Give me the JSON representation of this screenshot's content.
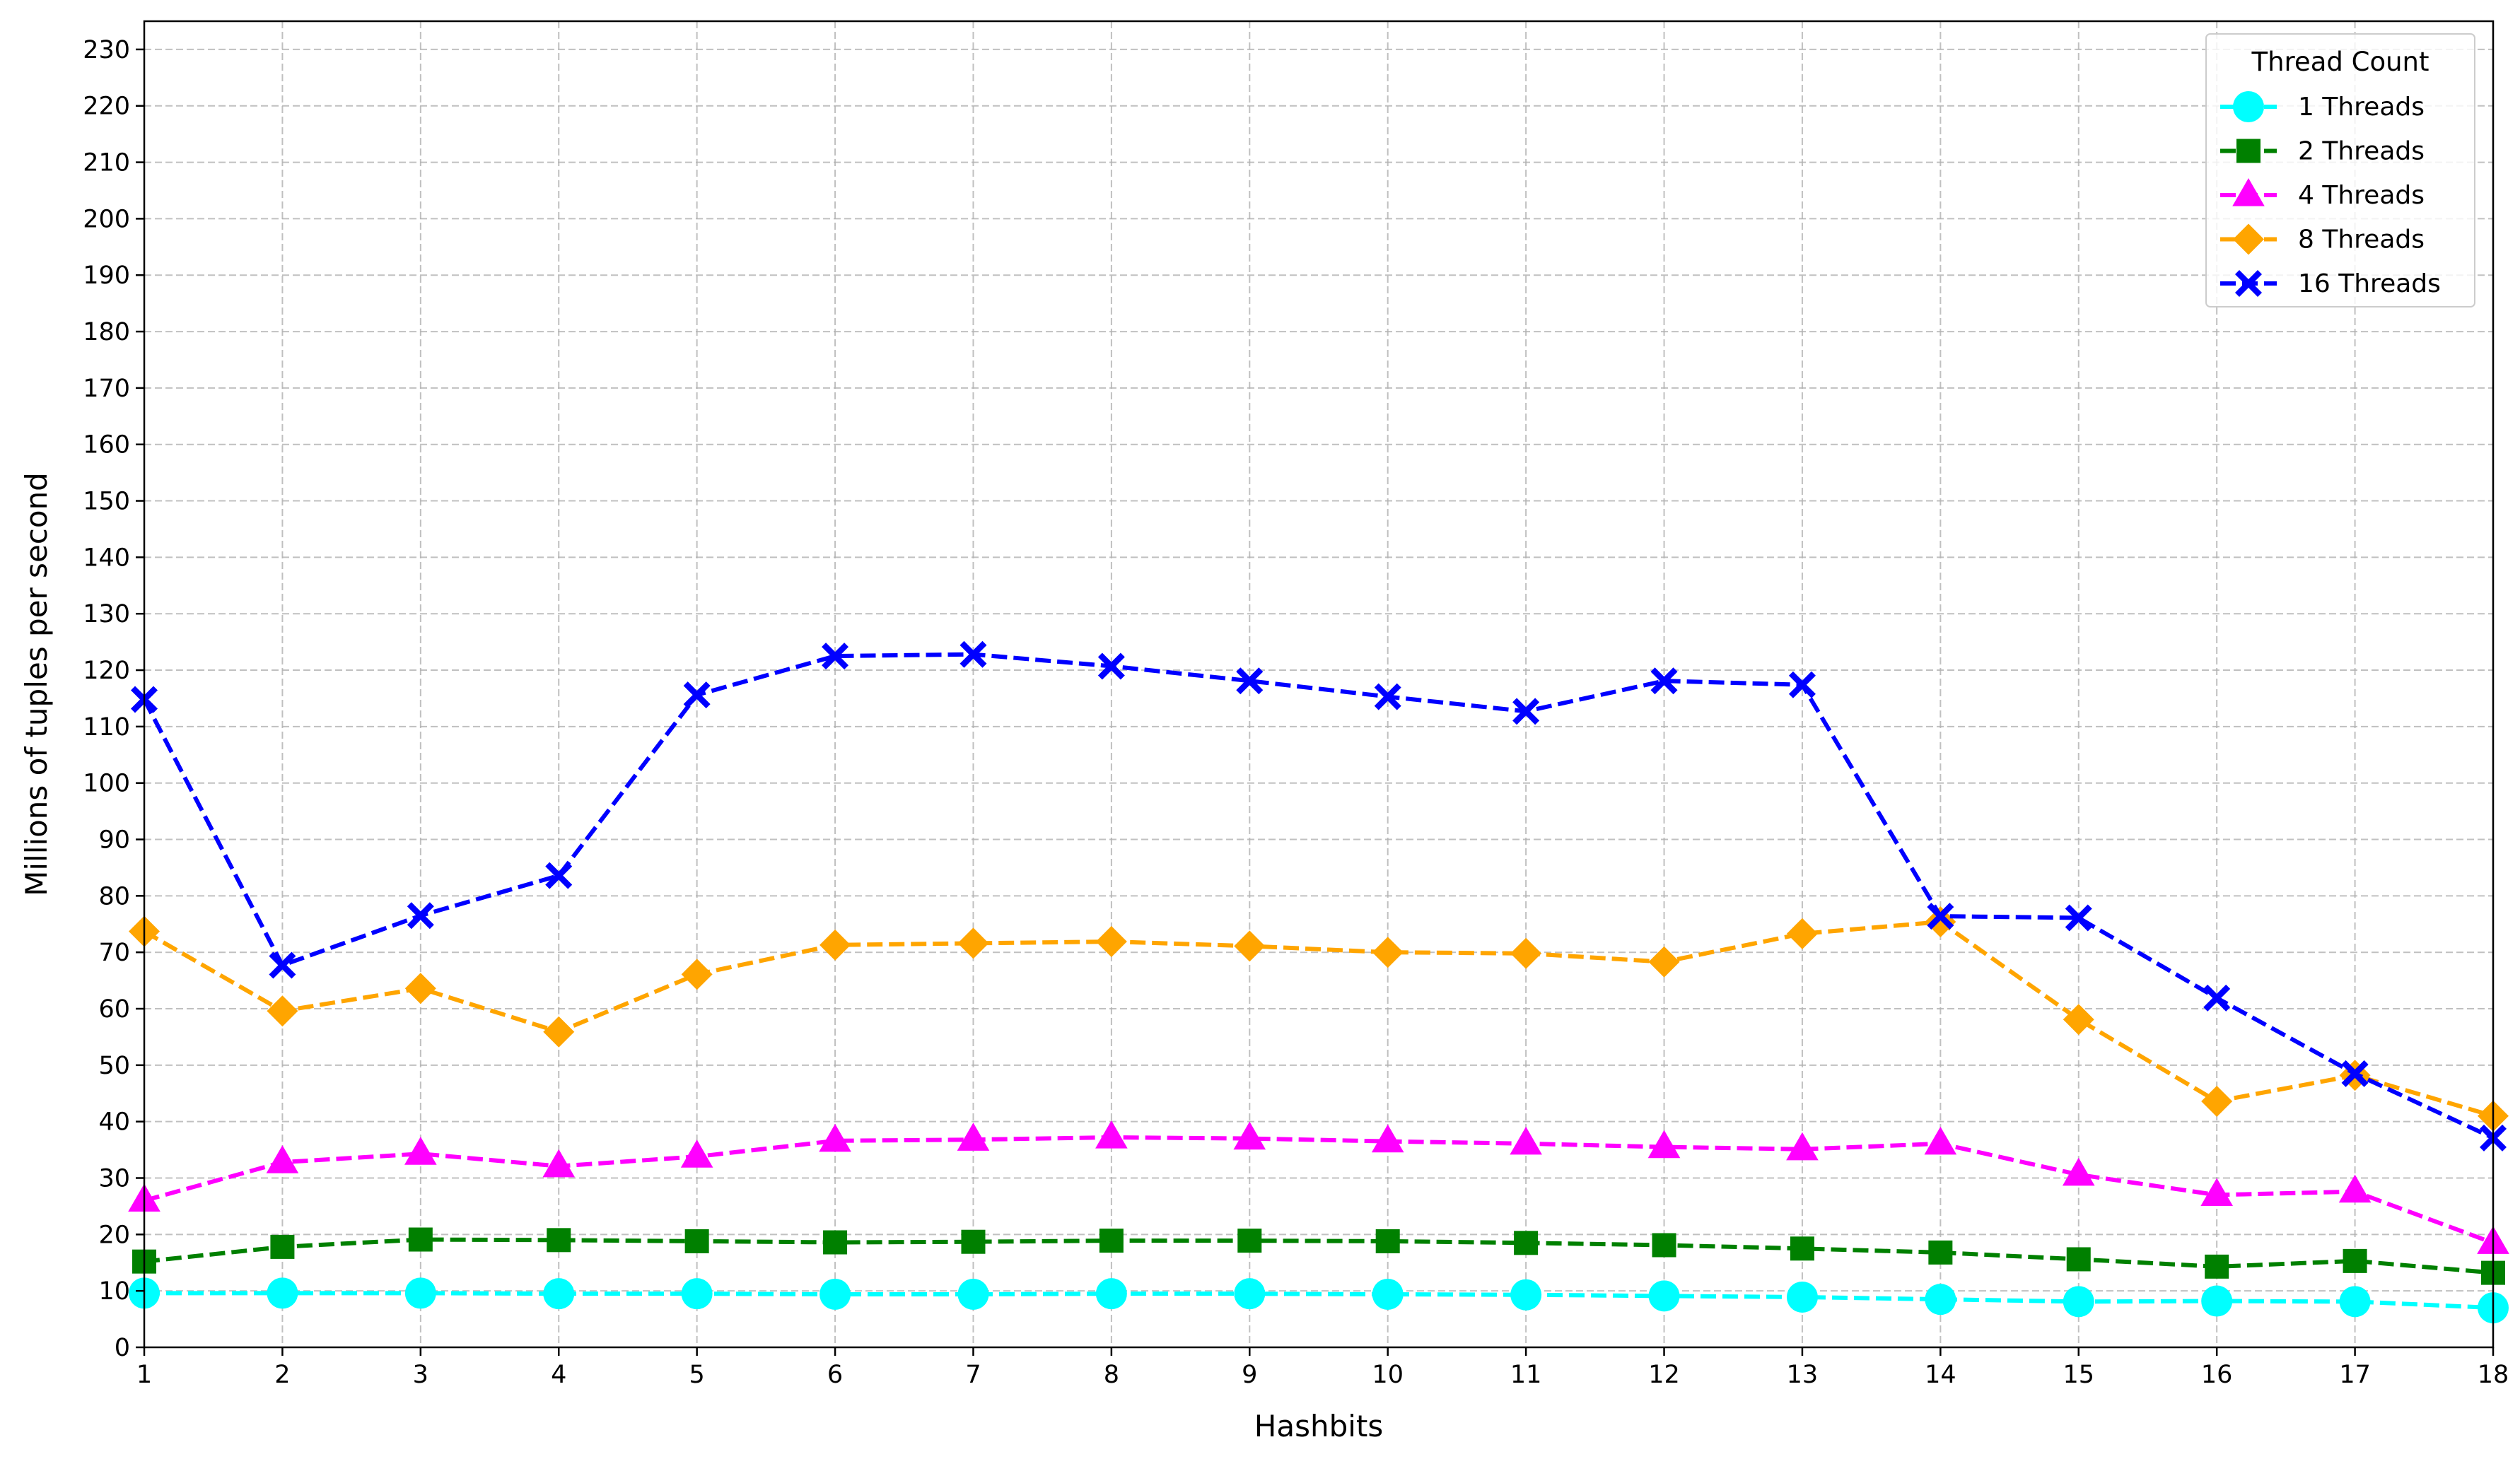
{
  "chart_data": {
    "type": "line",
    "title": "",
    "xlabel": "Hashbits",
    "ylabel": "Millions of tuples per second",
    "x": [
      1,
      2,
      3,
      4,
      5,
      6,
      7,
      8,
      9,
      10,
      11,
      12,
      13,
      14,
      15,
      16,
      17,
      18
    ],
    "xlim": [
      1,
      18
    ],
    "ylim": [
      0,
      235
    ],
    "yticks": [
      0,
      10,
      20,
      30,
      40,
      50,
      60,
      70,
      80,
      90,
      100,
      110,
      120,
      130,
      140,
      150,
      160,
      170,
      180,
      190,
      200,
      210,
      220,
      230
    ],
    "grid": true,
    "legend": {
      "title": "Thread Count",
      "position": "top-right"
    },
    "series": [
      {
        "name": "1 Threads",
        "color": "#00ffff",
        "marker": "circle",
        "values": [
          9.6,
          9.6,
          9.6,
          9.5,
          9.5,
          9.4,
          9.4,
          9.5,
          9.5,
          9.4,
          9.3,
          9.1,
          8.9,
          8.5,
          8.1,
          8.2,
          8.1,
          7.0
        ]
      },
      {
        "name": "2 Threads",
        "color": "#008000",
        "marker": "square",
        "values": [
          15.2,
          17.8,
          19.1,
          19.0,
          18.8,
          18.6,
          18.7,
          18.9,
          18.9,
          18.8,
          18.5,
          18.1,
          17.5,
          16.8,
          15.6,
          14.3,
          15.3,
          13.2
        ]
      },
      {
        "name": "4 Threads",
        "color": "#ff00ff",
        "marker": "triangle",
        "values": [
          26.0,
          32.8,
          34.3,
          32.1,
          33.8,
          36.6,
          36.8,
          37.2,
          37.0,
          36.5,
          36.1,
          35.5,
          35.1,
          36.1,
          30.6,
          27.0,
          27.6,
          18.5
        ]
      },
      {
        "name": "8 Threads",
        "color": "#ffa500",
        "marker": "diamond",
        "values": [
          73.7,
          59.6,
          63.6,
          55.9,
          66.1,
          71.3,
          71.6,
          71.9,
          71.1,
          70.0,
          69.8,
          68.3,
          73.3,
          75.4,
          58.1,
          43.6,
          48.2,
          41.0
        ]
      },
      {
        "name": "16 Threads",
        "color": "#0000ff",
        "marker": "x",
        "values": [
          114.8,
          67.7,
          76.5,
          83.6,
          115.6,
          122.5,
          122.8,
          120.7,
          118.1,
          115.3,
          112.7,
          118.1,
          117.4,
          76.4,
          76.1,
          61.9,
          48.5,
          37.1
        ]
      }
    ]
  }
}
